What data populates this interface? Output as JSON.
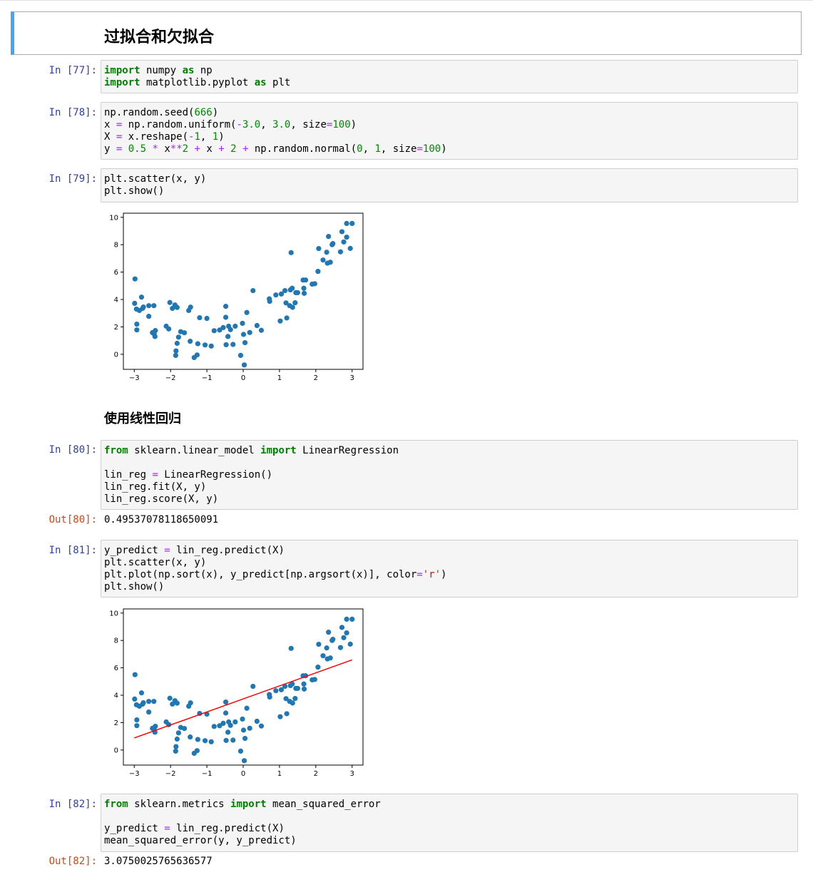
{
  "title": "过拟合和欠拟合",
  "section_title": "使用线性回归",
  "colors": {
    "prompt_in": "#303f9f",
    "prompt_out": "#d84315",
    "keyword": "#008000",
    "operator": "#aa22ff",
    "number": "#008800",
    "string": "#ba2121",
    "point": "#1f77b4",
    "line": "#ff0000",
    "selected_border": "#42a5f5"
  },
  "cells": [
    {
      "prompt": "In [77]:",
      "lines": [
        [
          {
            "t": "import",
            "c": "kw"
          },
          {
            "t": " numpy "
          },
          {
            "t": "as",
            "c": "kw"
          },
          {
            "t": " np"
          }
        ],
        [
          {
            "t": "import",
            "c": "kw"
          },
          {
            "t": " matplotlib.pyplot "
          },
          {
            "t": "as",
            "c": "kw"
          },
          {
            "t": " plt"
          }
        ]
      ]
    },
    {
      "prompt": "In [78]:",
      "lines": [
        [
          {
            "t": "np.random.seed("
          },
          {
            "t": "666",
            "c": "num"
          },
          {
            "t": ")"
          }
        ],
        [
          {
            "t": "x "
          },
          {
            "t": "=",
            "c": "op"
          },
          {
            "t": " np.random.uniform("
          },
          {
            "t": "-",
            "c": "op"
          },
          {
            "t": "3.0",
            "c": "num"
          },
          {
            "t": ", "
          },
          {
            "t": "3.0",
            "c": "num"
          },
          {
            "t": ", size"
          },
          {
            "t": "=",
            "c": "op"
          },
          {
            "t": "100",
            "c": "num"
          },
          {
            "t": ")"
          }
        ],
        [
          {
            "t": "X "
          },
          {
            "t": "=",
            "c": "op"
          },
          {
            "t": " x.reshape("
          },
          {
            "t": "-",
            "c": "op"
          },
          {
            "t": "1",
            "c": "num"
          },
          {
            "t": ", "
          },
          {
            "t": "1",
            "c": "num"
          },
          {
            "t": ")"
          }
        ],
        [
          {
            "t": "y "
          },
          {
            "t": "=",
            "c": "op"
          },
          {
            "t": " "
          },
          {
            "t": "0.5",
            "c": "num"
          },
          {
            "t": " "
          },
          {
            "t": "*",
            "c": "op"
          },
          {
            "t": " x"
          },
          {
            "t": "**",
            "c": "op"
          },
          {
            "t": "2",
            "c": "num"
          },
          {
            "t": " "
          },
          {
            "t": "+",
            "c": "op"
          },
          {
            "t": " x "
          },
          {
            "t": "+",
            "c": "op"
          },
          {
            "t": " "
          },
          {
            "t": "2",
            "c": "num"
          },
          {
            "t": " "
          },
          {
            "t": "+",
            "c": "op"
          },
          {
            "t": " np.random.normal("
          },
          {
            "t": "0",
            "c": "num"
          },
          {
            "t": ", "
          },
          {
            "t": "1",
            "c": "num"
          },
          {
            "t": ", size"
          },
          {
            "t": "=",
            "c": "op"
          },
          {
            "t": "100",
            "c": "num"
          },
          {
            "t": ")"
          }
        ]
      ]
    },
    {
      "prompt": "In [79]:",
      "lines": [
        [
          {
            "t": "plt.scatter(x, y)"
          }
        ],
        [
          {
            "t": "plt.show()"
          }
        ]
      ]
    },
    {
      "prompt": "In [80]:",
      "lines": [
        [
          {
            "t": "from",
            "c": "kw"
          },
          {
            "t": " sklearn.linear_model "
          },
          {
            "t": "import",
            "c": "kw"
          },
          {
            "t": " LinearRegression"
          }
        ],
        [],
        [
          {
            "t": "lin_reg "
          },
          {
            "t": "=",
            "c": "op"
          },
          {
            "t": " LinearRegression()"
          }
        ],
        [
          {
            "t": "lin_reg.fit(X, y)"
          }
        ],
        [
          {
            "t": "lin_reg.score(X, y)"
          }
        ]
      ]
    },
    {
      "prompt": "In [81]:",
      "lines": [
        [
          {
            "t": "y_predict "
          },
          {
            "t": "=",
            "c": "op"
          },
          {
            "t": " lin_reg.predict(X)"
          }
        ],
        [
          {
            "t": "plt.scatter(x, y)"
          }
        ],
        [
          {
            "t": "plt.plot(np.sort(x), y_predict[np.argsort(x)], color"
          },
          {
            "t": "=",
            "c": "op"
          },
          {
            "t": "'r'",
            "c": "str"
          },
          {
            "t": ")"
          }
        ],
        [
          {
            "t": "plt.show()"
          }
        ]
      ]
    },
    {
      "prompt": "In [82]:",
      "lines": [
        [
          {
            "t": "from",
            "c": "kw"
          },
          {
            "t": " sklearn.metrics "
          },
          {
            "t": "import",
            "c": "kw"
          },
          {
            "t": " mean_squared_error"
          }
        ],
        [],
        [
          {
            "t": "y_predict "
          },
          {
            "t": "=",
            "c": "op"
          },
          {
            "t": " lin_reg.predict(X)"
          }
        ],
        [
          {
            "t": "mean_squared_error(y, y_predict)"
          }
        ]
      ]
    }
  ],
  "outputs": [
    {
      "prompt": "Out[80]:",
      "text": "0.49537078118650091"
    },
    {
      "prompt": "Out[82]:",
      "text": "3.0750025765636577"
    }
  ],
  "chart_data": [
    {
      "type": "scatter",
      "xlim": [
        -3.3,
        3.3
      ],
      "ylim": [
        -1.1,
        10.3
      ],
      "xticks": [
        -3,
        -2,
        -1,
        0,
        1,
        2,
        3
      ],
      "yticks": [
        0,
        2,
        4,
        6,
        8,
        10
      ],
      "xtick_labels": [
        "−3",
        "−2",
        "−1",
        "0",
        "1",
        "2",
        "3"
      ],
      "ytick_labels": [
        "0",
        "2",
        "4",
        "6",
        "8",
        "10"
      ],
      "points": [
        [
          -2.98,
          5.5
        ],
        [
          -2.99,
          3.72
        ],
        [
          -2.94,
          3.3
        ],
        [
          -2.86,
          3.2
        ],
        [
          -2.93,
          2.2
        ],
        [
          -2.93,
          1.78
        ],
        [
          -2.8,
          4.17
        ],
        [
          -2.75,
          3.45
        ],
        [
          -2.77,
          3.35
        ],
        [
          -2.6,
          3.55
        ],
        [
          -2.46,
          3.55
        ],
        [
          -2.6,
          2.77
        ],
        [
          -2.5,
          1.58
        ],
        [
          -2.45,
          1.48
        ],
        [
          -2.43,
          1.3
        ],
        [
          -2.42,
          1.73
        ],
        [
          -2.12,
          2.05
        ],
        [
          -2.05,
          1.85
        ],
        [
          -2.02,
          3.78
        ],
        [
          -1.95,
          3.35
        ],
        [
          -1.88,
          3.6
        ],
        [
          -1.82,
          3.42
        ],
        [
          -1.82,
          0.8
        ],
        [
          -1.85,
          0.25
        ],
        [
          -1.86,
          -0.08
        ],
        [
          -1.78,
          1.25
        ],
        [
          -1.72,
          1.65
        ],
        [
          -1.62,
          1.57
        ],
        [
          -1.5,
          3.2
        ],
        [
          -1.45,
          3.44
        ],
        [
          -1.46,
          0.95
        ],
        [
          -1.35,
          -0.24
        ],
        [
          -1.25,
          0.77
        ],
        [
          -1.27,
          -0.05
        ],
        [
          -1.2,
          2.67
        ],
        [
          -1.0,
          2.62
        ],
        [
          -1.05,
          0.68
        ],
        [
          -0.88,
          0.6
        ],
        [
          -0.8,
          1.72
        ],
        [
          -0.65,
          1.77
        ],
        [
          -0.55,
          1.95
        ],
        [
          -0.48,
          3.5
        ],
        [
          -0.48,
          2.7
        ],
        [
          -0.47,
          0.7
        ],
        [
          -0.42,
          1.3
        ],
        [
          -0.4,
          2.05
        ],
        [
          -0.35,
          1.8
        ],
        [
          -0.28,
          0.72
        ],
        [
          -0.22,
          2.05
        ],
        [
          -0.07,
          -0.08
        ],
        [
          -0.02,
          2.26
        ],
        [
          0.01,
          1.45
        ],
        [
          0.03,
          -0.78
        ],
        [
          0.05,
          0.85
        ],
        [
          0.1,
          3.05
        ],
        [
          0.18,
          1.59
        ],
        [
          0.27,
          4.65
        ],
        [
          0.38,
          2.1
        ],
        [
          0.5,
          1.75
        ],
        [
          0.72,
          4.05
        ],
        [
          0.73,
          3.87
        ],
        [
          0.9,
          4.33
        ],
        [
          1.02,
          2.43
        ],
        [
          1.05,
          4.4
        ],
        [
          1.15,
          4.65
        ],
        [
          1.2,
          2.65
        ],
        [
          1.18,
          3.75
        ],
        [
          1.28,
          3.55
        ],
        [
          1.3,
          4.7
        ],
        [
          1.32,
          7.42
        ],
        [
          1.35,
          4.82
        ],
        [
          1.36,
          3.43
        ],
        [
          1.43,
          3.76
        ],
        [
          1.45,
          4.5
        ],
        [
          1.5,
          4.5
        ],
        [
          1.65,
          5.42
        ],
        [
          1.67,
          4.82
        ],
        [
          1.68,
          4.45
        ],
        [
          1.72,
          5.42
        ],
        [
          1.9,
          5.12
        ],
        [
          1.97,
          5.15
        ],
        [
          2.06,
          6.05
        ],
        [
          2.08,
          7.72
        ],
        [
          2.2,
          6.88
        ],
        [
          2.3,
          7.45
        ],
        [
          2.32,
          6.65
        ],
        [
          2.35,
          8.6
        ],
        [
          2.4,
          6.72
        ],
        [
          2.45,
          8.0
        ],
        [
          2.47,
          8.08
        ],
        [
          2.68,
          7.48
        ],
        [
          2.72,
          8.95
        ],
        [
          2.77,
          8.2
        ],
        [
          2.85,
          8.55
        ],
        [
          2.85,
          9.55
        ],
        [
          2.95,
          7.73
        ],
        [
          3.0,
          9.55
        ]
      ],
      "point_color": "#1f77b4"
    },
    {
      "type": "scatter",
      "xlim": [
        -3.3,
        3.3
      ],
      "ylim": [
        -1.1,
        10.3
      ],
      "xticks": [
        -3,
        -2,
        -1,
        0,
        1,
        2,
        3
      ],
      "yticks": [
        0,
        2,
        4,
        6,
        8,
        10
      ],
      "xtick_labels": [
        "−3",
        "−2",
        "−1",
        "0",
        "1",
        "2",
        "3"
      ],
      "ytick_labels": [
        "0",
        "2",
        "4",
        "6",
        "8",
        "10"
      ],
      "points_ref": 0,
      "point_color": "#1f77b4",
      "line": {
        "x": [
          -3.0,
          3.0
        ],
        "y": [
          0.88,
          6.58
        ],
        "color": "#ff0000"
      }
    }
  ]
}
